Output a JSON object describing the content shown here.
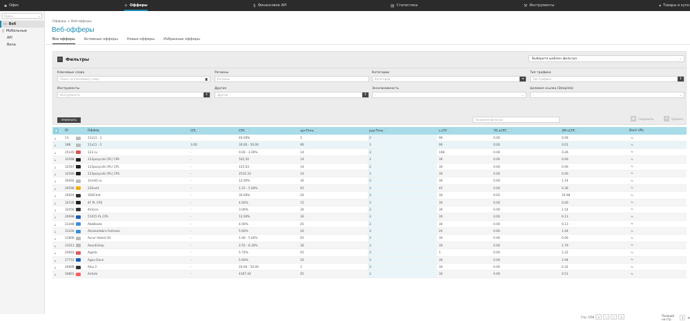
{
  "topbar": {
    "office": "Офис",
    "offers": "Офферы",
    "finance": "Финансовое API",
    "stats": "Статистика",
    "tools": "Инструменты",
    "goods": "Товары и купо"
  },
  "sidebar": {
    "search_placeholder": "Поиск",
    "items": [
      {
        "label": "Веб"
      },
      {
        "label": "Мобильные"
      },
      {
        "label": "API"
      },
      {
        "label": "Вела"
      }
    ]
  },
  "breadcrumb": "Офферы  >  Веб-офферы",
  "page_title": "Веб-офферы",
  "tabs": [
    "Все офферы",
    "Активные офферы",
    "Новые офферы",
    "Избранные офферы"
  ],
  "filters": {
    "title": "Фильтры",
    "template": "Выберите шаблон фильтра",
    "keywords_label": "Ключевые слова",
    "keywords_placeholder": "Поиск по ключевому слову",
    "regions_label": "Регионы",
    "regions_placeholder": "Регионы",
    "categories_label": "Категории",
    "categories_placeholder": "Категории",
    "traffic_label": "Тип трафика",
    "traffic_placeholder": "Тип трафика",
    "tools_label": "Инструменты",
    "tools_placeholder": "Инструменты",
    "other_label": "Другие",
    "other_placeholder": "Другие",
    "exclusive_label": "Эксклюзивность",
    "exclusive_value": "-",
    "deeplink_label": "Целевая ссылка (Deeplink)",
    "deeplink_value": "-",
    "apply": "ПРИМЕНИТЬ",
    "filter_name_placeholder": "Название фильтра",
    "save": "Сохранить",
    "delete": "Удалить"
  },
  "table": {
    "headers": [
      "ID",
      "Оффер",
      "CPL",
      "CPA",
      "apr-Time",
      "pay-Time",
      "c-LTV",
      "7D eCPC",
      "3M eCPC",
      "Back URL"
    ],
    "rows": [
      {
        "id": "13",
        "name": "11x11 - 1",
        "cpl": "-",
        "cpa": "40.00%",
        "apr": "1",
        "pay": "3",
        "ltv": "90",
        "e7": "0.00",
        "e3m": "0.06",
        "color": "#bbb"
      },
      {
        "id": "188",
        "name": "11x11 - 2",
        "cpl": "3.00",
        "cpa": "30.00 - 50.00",
        "apr": "90",
        "pay": "3",
        "ltv": "90",
        "e7": "0.00",
        "e3m": "0.01",
        "color": "#bbb"
      },
      {
        "id": "25145",
        "name": "123.ru",
        "cpl": "-",
        "cpa": "0.00 - 3.00%",
        "apr": "14",
        "pay": "3",
        "ltv": "198",
        "e7": "0.00",
        "e3m": "0.26",
        "color": "#d9534f"
      },
      {
        "id": "32568",
        "name": "123pozyczki [PL] CPA",
        "cpl": "-",
        "cpa": "502.50",
        "apr": "14",
        "pay": "3",
        "ltv": "30",
        "e7": "0.00",
        "e3m": "0.00",
        "color": "#222"
      },
      {
        "id": "32567",
        "name": "123pozyczki [PL] CPL",
        "cpl": "-",
        "cpa": "125.63",
        "apr": "14",
        "pay": "3",
        "ltv": "30",
        "e7": "0.00",
        "e3m": "0.00",
        "color": "#222"
      },
      {
        "id": "32566",
        "name": "123pozyczki [PL] CPS",
        "cpl": "-",
        "cpa": "2510.33",
        "apr": "14",
        "pay": "3",
        "ltv": "30",
        "e7": "0.00",
        "e3m": "0.00",
        "color": "#222"
      },
      {
        "id": "30402",
        "name": "1tvmtt.ru",
        "cpl": "-",
        "cpa": "12.00%",
        "apr": "30",
        "pay": "3",
        "ltv": "30",
        "e7": "0.00",
        "e3m": "1.14",
        "color": "#bbb"
      },
      {
        "id": "29598",
        "name": "220volt",
        "cpl": "-",
        "cpa": "1.15 - 5.00%",
        "apr": "45",
        "pay": "3",
        "ltv": "45",
        "e7": "0.00",
        "e3m": "0.36",
        "color": "#f0ad00"
      },
      {
        "id": "16924",
        "name": "3DXChat",
        "cpl": "-",
        "cpa": "30.00%",
        "apr": "20",
        "pay": "3",
        "ltv": "30",
        "e7": "9.03",
        "e3m": "10.98",
        "color": "#333"
      },
      {
        "id": "32535",
        "name": "4F PL CPS",
        "cpl": "-",
        "cpa": "4.00%",
        "apr": "15",
        "pay": "3",
        "ltv": "30",
        "e7": "0.00",
        "e3m": "0.00",
        "color": "#222"
      },
      {
        "id": "32056",
        "name": "4Vision",
        "cpl": "-",
        "cpa": "3.00%",
        "apr": "30",
        "pay": "3",
        "ltv": "30",
        "e7": "0.00",
        "e3m": "1.54",
        "color": "#333"
      },
      {
        "id": "26998",
        "name": "51015 PL CPS",
        "cpl": "-",
        "cpa": "12.00%",
        "apr": "30",
        "pay": "3",
        "ltv": "30",
        "e7": "0.00",
        "e3m": "6.11",
        "color": "#1a5fb4"
      },
      {
        "id": "31448",
        "name": "AbeBooks",
        "cpl": "-",
        "cpa": "4.00%",
        "apr": "45",
        "pay": "3",
        "ltv": "30",
        "e7": "0.00",
        "e3m": "0.13",
        "color": "#3a8fd8"
      },
      {
        "id": "31434",
        "name": "Abrakadabra Fantasia",
        "cpl": "-",
        "cpa": "5.60%",
        "apr": "20",
        "pay": "3",
        "ltv": "20",
        "e7": "0.00",
        "e3m": "1.44",
        "color": "#3a8fd8"
      },
      {
        "id": "31806",
        "name": "Accor Hotels ES",
        "cpl": "-",
        "cpa": "1.00 - 5.60%",
        "apr": "45",
        "pay": "3",
        "ltv": "30",
        "e7": "0.00",
        "e3m": "0.00",
        "color": "#bbb"
      },
      {
        "id": "31013",
        "name": "AeonEshop",
        "cpl": "-",
        "cpa": "2.55 - 8.30%",
        "apr": "30",
        "pay": "3",
        "ltv": "30",
        "e7": "0.00",
        "e3m": "1.79",
        "color": "#bbb"
      },
      {
        "id": "20943",
        "name": "Agoda",
        "cpl": "-",
        "cpa": "5.70%",
        "apr": "45",
        "pay": "3",
        "ltv": "1",
        "e7": "0.00",
        "e3m": "1.22",
        "color": "#e05a5a"
      },
      {
        "id": "27753",
        "name": "Agoa Doce",
        "cpl": "-",
        "cpa": "5.60%",
        "apr": "20",
        "pay": "3",
        "ltv": "30",
        "e7": "0.00",
        "e3m": "1.94",
        "color": "#1a5fb4"
      },
      {
        "id": "26909",
        "name": "Aika 2",
        "cpl": "-",
        "cpa": "20.00 - 50.00",
        "apr": "1",
        "pay": "3",
        "ltv": "30",
        "e7": "0.00",
        "e3m": "0.32",
        "color": "#333"
      },
      {
        "id": "30801",
        "name": "Airbnb",
        "cpl": "-",
        "cpa": "4187.44",
        "apr": "45",
        "pay": "3",
        "ltv": "30",
        "e7": "0.00",
        "e3m": "0.51",
        "color": "#ff5a5f"
      }
    ]
  },
  "pager": {
    "page_label": "Стр. 1/56",
    "per_page_label": "Позиций на стр.",
    "per_page_value": "1"
  }
}
